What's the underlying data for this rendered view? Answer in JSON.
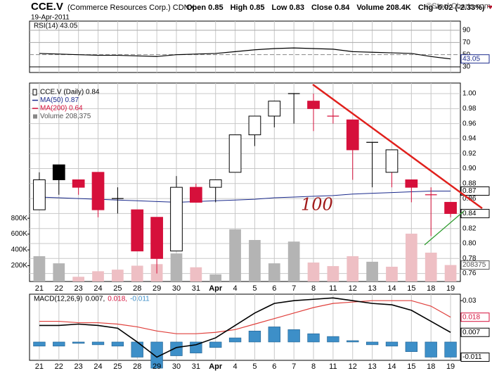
{
  "header": {
    "symbol": "CCE.V",
    "name": "(Commerce Resources Corp.) CDNX",
    "date": "19-Apr-2011",
    "quote": [
      "Open 0.85",
      "High 0.85",
      "Low 0.83",
      "Close 0.84",
      "Volume 208.4K",
      "Chg -0.02 (-2.33%)"
    ],
    "credit": "©StockCharts.com"
  },
  "chart_data": [
    {
      "type": "line",
      "title": "RSI(14) 43.05",
      "color": "#000000",
      "ylim": [
        20.8,
        105
      ],
      "yticks": [
        30,
        50,
        70,
        90
      ],
      "values": [
        52,
        51,
        50,
        49,
        49,
        48,
        47,
        50,
        51,
        52,
        55,
        58,
        60,
        61,
        60,
        59,
        55,
        54,
        53,
        52,
        47,
        43.05
      ]
    },
    {
      "type": "candlestick",
      "legend": [
        "CCE.V (Daily) 0.84",
        "MA(50) 0.87",
        "MA(200) 0.64",
        "Volume 208,375"
      ],
      "annotation": "100",
      "categories": [
        "21",
        "22",
        "23",
        "24",
        "25",
        "28",
        "29",
        "30",
        "31",
        "Apr",
        "4",
        "5",
        "6",
        "7",
        "8",
        "11",
        "12",
        "13",
        "14",
        "15",
        "18",
        "19"
      ],
      "open": [
        0.845,
        0.905,
        0.885,
        0.895,
        0.86,
        0.845,
        0.835,
        0.79,
        0.875,
        0.875,
        0.895,
        0.945,
        0.97,
        1.0,
        0.99,
        0.97,
        0.965,
        0.935,
        0.895,
        0.885,
        0.865,
        0.855
      ],
      "high": [
        0.895,
        0.905,
        0.885,
        0.895,
        0.875,
        0.845,
        0.835,
        0.89,
        0.88,
        0.885,
        0.945,
        0.97,
        0.99,
        1.0,
        1.0,
        0.98,
        0.965,
        0.935,
        0.925,
        0.885,
        0.875,
        0.855
      ],
      "low": [
        0.845,
        0.865,
        0.865,
        0.835,
        0.84,
        0.79,
        0.76,
        0.79,
        0.855,
        0.855,
        0.895,
        0.93,
        0.955,
        0.96,
        0.95,
        0.96,
        0.885,
        0.875,
        0.875,
        0.855,
        0.81,
        0.835
      ],
      "close": [
        0.885,
        0.885,
        0.875,
        0.845,
        0.86,
        0.79,
        0.78,
        0.875,
        0.855,
        0.885,
        0.945,
        0.97,
        0.99,
        1.0,
        0.98,
        0.97,
        0.925,
        0.935,
        0.925,
        0.875,
        0.865,
        0.84
      ],
      "up_color": "#000000",
      "down_color": "#d6103b",
      "ma": {
        "name": "MA(50)",
        "color": "#1a2a8c",
        "values": [
          0.862,
          0.861,
          0.86,
          0.859,
          0.858,
          0.857,
          0.856,
          0.855,
          0.856,
          0.857,
          0.858,
          0.859,
          0.861,
          0.862,
          0.863,
          0.864,
          0.866,
          0.867,
          0.868,
          0.869,
          0.87,
          0.87
        ]
      },
      "volume": [
        320000,
        230000,
        60000,
        130000,
        150000,
        200000,
        220000,
        355000,
        180000,
        90000,
        660000,
        525000,
        230000,
        505000,
        240000,
        195000,
        320000,
        250000,
        187000,
        605000,
        365000,
        208375
      ],
      "volume_colors": [
        "#b4b4b4",
        "#b4b4b4",
        "#eebfc4",
        "#eebfc4",
        "#eebfc4",
        "#eebfc4",
        "#eebfc4",
        "#b4b4b4",
        "#eebfc4",
        "#b4b4b4",
        "#b4b4b4",
        "#b4b4b4",
        "#b4b4b4",
        "#b4b4b4",
        "#eebfc4",
        "#eebfc4",
        "#eebfc4",
        "#b4b4b4",
        "#eebfc4",
        "#eebfc4",
        "#eebfc4",
        "#eebfc4"
      ],
      "ylim": [
        0.7493,
        1.0141
      ],
      "yticks": [
        {
          "value": 0.76,
          "label": "0.76"
        },
        {
          "value": 0.78,
          "label": "0.78"
        },
        {
          "value": 0.8,
          "label": "0.80"
        },
        {
          "value": 0.82,
          "label": "0.82"
        },
        {
          "value": 0.84,
          "label": "0.84"
        },
        {
          "value": 0.86,
          "label": "0.86"
        },
        {
          "value": 0.88,
          "label": "0.88"
        },
        {
          "value": 0.9,
          "label": "0.90"
        },
        {
          "value": 0.92,
          "label": "0.92"
        },
        {
          "value": 0.94,
          "label": "0.94"
        },
        {
          "value": 0.96,
          "label": "0.96"
        },
        {
          "value": 0.98,
          "label": "0.98"
        },
        {
          "value": 1.0,
          "label": "1.00"
        }
      ],
      "y2lim": [
        0,
        2510000
      ],
      "y2ticks": [
        {
          "value": 200000,
          "label": "200K"
        },
        {
          "value": 400000,
          "label": "400K"
        },
        {
          "value": 600000,
          "label": "600K"
        },
        {
          "value": 800000,
          "label": "800K"
        }
      ],
      "grid": true
    },
    {
      "type": "macd",
      "title_parts": [
        "MACD(12,26,9)",
        "0.007,",
        "0.018,",
        "-0.011"
      ],
      "categories": [
        "21",
        "22",
        "23",
        "24",
        "25",
        "28",
        "29",
        "30",
        "31",
        "Apr",
        "4",
        "5",
        "6",
        "7",
        "8",
        "11",
        "12",
        "13",
        "14",
        "15",
        "18",
        "19"
      ],
      "ylim": [
        -0.0133,
        0.0347
      ],
      "yticks": [
        0.03
      ],
      "series": [
        {
          "name": "MACD",
          "color": "#000000",
          "values": [
            0.012,
            0.012,
            0.013,
            0.012,
            0.01,
            0.0,
            -0.011,
            -0.004,
            -0.002,
            0.003,
            0.012,
            0.021,
            0.028,
            0.03,
            0.031,
            0.032,
            0.03,
            0.028,
            0.027,
            0.023,
            0.015,
            0.007
          ]
        },
        {
          "name": "Signal",
          "color": "#e0403c",
          "values": [
            0.015,
            0.015,
            0.014,
            0.014,
            0.013,
            0.011,
            0.008,
            0.006,
            0.006,
            0.007,
            0.009,
            0.013,
            0.017,
            0.021,
            0.025,
            0.028,
            0.029,
            0.03,
            0.03,
            0.03,
            0.026,
            0.018
          ]
        },
        {
          "name": "Histogram",
          "color": "#3d8fc8",
          "values": [
            -0.003,
            -0.003,
            -0.001,
            -0.002,
            -0.003,
            -0.011,
            -0.019,
            -0.01,
            -0.008,
            -0.004,
            0.003,
            0.008,
            0.011,
            0.009,
            0.006,
            0.004,
            0.001,
            -0.002,
            -0.003,
            -0.007,
            -0.011,
            -0.011
          ]
        }
      ],
      "grid": true
    }
  ]
}
